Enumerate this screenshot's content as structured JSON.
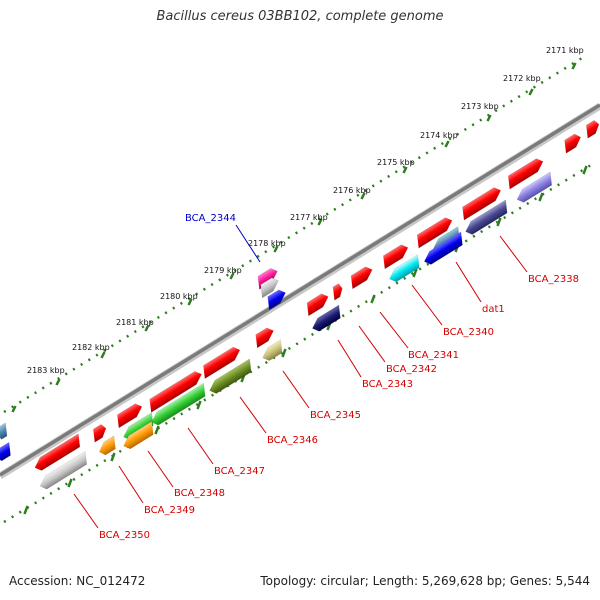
{
  "title": "Bacillus cereus 03BB102, complete genome",
  "footer": {
    "accession": "Accession: NC_012472",
    "summary": "Topology: circular; Length: 5,269,628 bp; Genes: 5,544"
  },
  "ruler_labels": [
    "2171 kbp",
    "2172 kbp",
    "2173 kbp",
    "2174 kbp",
    "2175 kbp",
    "2176 kbp",
    "2177 kbp",
    "2178 kbp",
    "2179 kbp",
    "2180 kbp",
    "2181 kbp",
    "2182 kbp",
    "2183 kbp"
  ],
  "gene_labels": [
    "BCA_2338",
    "dat1",
    "BCA_2340",
    "BCA_2341",
    "BCA_2342",
    "BCA_2343",
    "BCA_2345",
    "BCA_2346",
    "BCA_2347",
    "BCA_2348",
    "BCA_2349",
    "BCA_2350",
    "BCA_2344"
  ],
  "colors": {
    "backbone": "#8a8a8a",
    "ruler": "#2e7d1f",
    "label_red": "#d40000",
    "label_blue": "#0000cc"
  }
}
